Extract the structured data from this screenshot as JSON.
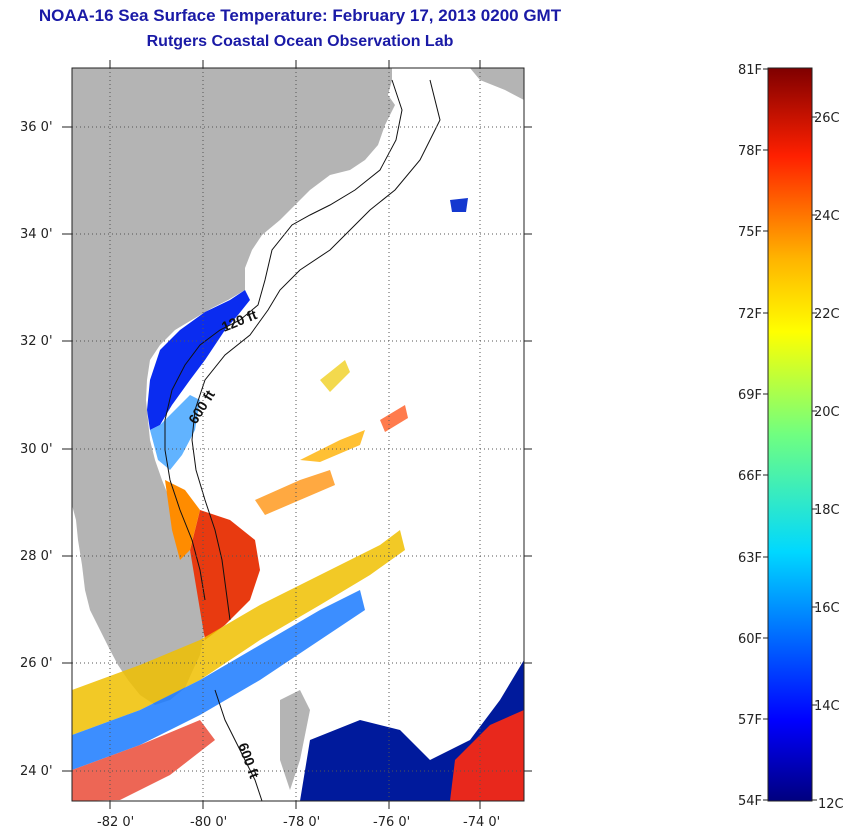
{
  "header": {
    "title": "NOAA-16 Sea Surface Temperature:  February 17, 2013 0200 GMT",
    "subtitle": "Rutgers Coastal Ocean Observation Lab"
  },
  "map": {
    "lat_ticks": [
      "36 0'",
      "34 0'",
      "32 0'",
      "30 0'",
      "28 0'",
      "26 0'",
      "24 0'"
    ],
    "lon_ticks": [
      "-82 0'",
      "-80 0'",
      "-78 0'",
      "-76 0'",
      "-74 0'"
    ],
    "contour_labels": [
      "120 ft",
      "600 ft",
      "600 ft"
    ],
    "land_color": "#b4b4b4",
    "cloud_color": "#ffffff"
  },
  "colorbar": {
    "fahrenheit": [
      "81F",
      "78F",
      "75F",
      "72F",
      "69F",
      "66F",
      "63F",
      "60F",
      "57F",
      "54F"
    ],
    "celsius": [
      "26C",
      "24C",
      "22C",
      "20C",
      "18C",
      "16C",
      "14C",
      "12C"
    ]
  }
}
